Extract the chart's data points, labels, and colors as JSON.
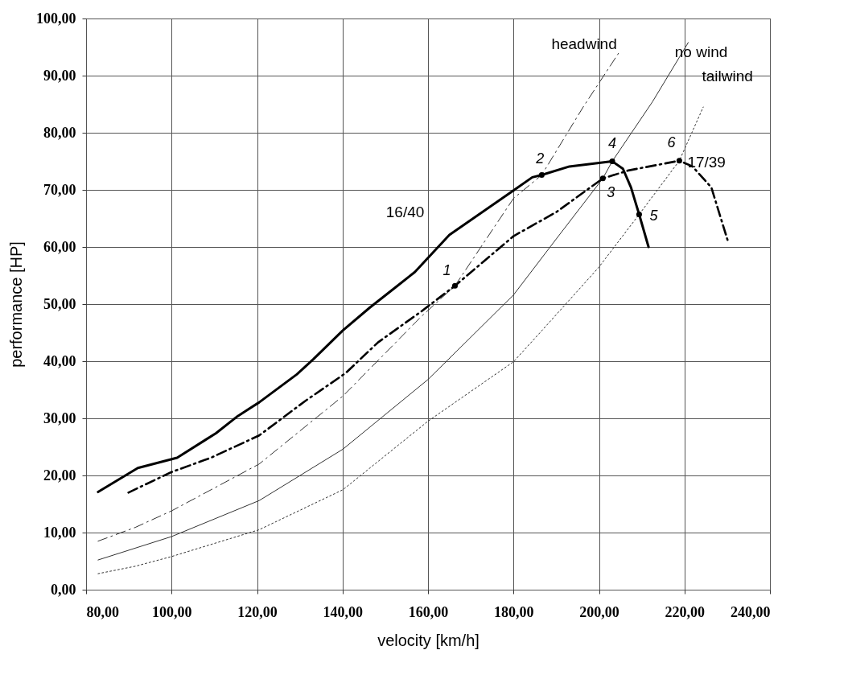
{
  "chart_data": {
    "type": "line",
    "xlabel": "velocity [km/h]",
    "ylabel": "performance [HP]",
    "xlim": [
      80,
      240
    ],
    "ylim": [
      0,
      100
    ],
    "xticks": [
      {
        "value": 80,
        "label": "80,00"
      },
      {
        "value": 100,
        "label": "100,00"
      },
      {
        "value": 120,
        "label": "120,00"
      },
      {
        "value": 140,
        "label": "140,00"
      },
      {
        "value": 160,
        "label": "160,00"
      },
      {
        "value": 180,
        "label": "180,00"
      },
      {
        "value": 200,
        "label": "200,00"
      },
      {
        "value": 220,
        "label": "220,00"
      },
      {
        "value": 240,
        "label": "240,00"
      }
    ],
    "yticks": [
      {
        "value": 0,
        "label": "0,00"
      },
      {
        "value": 10,
        "label": "10,00"
      },
      {
        "value": 20,
        "label": "20,00"
      },
      {
        "value": 30,
        "label": "30,00"
      },
      {
        "value": 40,
        "label": "40,00"
      },
      {
        "value": 50,
        "label": "50,00"
      },
      {
        "value": 60,
        "label": "60,00"
      },
      {
        "value": 70,
        "label": "70,00"
      },
      {
        "value": 80,
        "label": "80,00"
      },
      {
        "value": 90,
        "label": "90,00"
      },
      {
        "value": 100,
        "label": "100,00"
      }
    ],
    "grid": true,
    "series": [
      {
        "name": "16/40",
        "color": "#000000",
        "line_style": "solid",
        "x": [
          82.8,
          92.1,
          101.3,
          110.4,
          115.5,
          120.5,
          129.3,
          133.1,
          140.1,
          146.4,
          152.5,
          156.9,
          165,
          180,
          184.4,
          186.6,
          193.1,
          203.1,
          205.6,
          207.5,
          209.4,
          211.6
        ],
        "values": [
          17.1,
          21.3,
          23.1,
          27.4,
          30.4,
          32.8,
          37.7,
          40.3,
          45.4,
          49.4,
          53.0,
          55.6,
          62.1,
          69.9,
          72.2,
          72.6,
          74.1,
          75.0,
          73.7,
          70.4,
          65.7,
          60.0
        ]
      },
      {
        "name": "17/39",
        "color": "#000000",
        "line_style": "dashed",
        "x": [
          89.9,
          100,
          109.2,
          120.5,
          131.2,
          140.7,
          148.3,
          158.4,
          166.3,
          180,
          190,
          200.9,
          206.9,
          218.8,
          221.9,
          226.3,
          230.3
        ],
        "values": [
          17.0,
          20.6,
          23.1,
          27.0,
          33.0,
          37.9,
          43.3,
          48.7,
          53.2,
          61.9,
          66.1,
          72.0,
          73.4,
          75.1,
          74.1,
          70.4,
          60.7
        ]
      },
      {
        "name": "headwind",
        "color": "#333333",
        "line_style": "dashed",
        "x": [
          82.8,
          91.5,
          100,
          120.5,
          140.1,
          158.4,
          166.3,
          180,
          186.6,
          196.3,
          205
        ],
        "values": [
          8.5,
          10.9,
          13.8,
          22.0,
          33.9,
          47.8,
          53.2,
          68.5,
          72.6,
          84.5,
          94.4
        ]
      },
      {
        "name": "no wind",
        "color": "#333333",
        "line_style": "solid",
        "x": [
          82.8,
          100,
          120.5,
          140.1,
          160,
          180,
          190,
          200.9,
          203.1,
          212.5,
          220.9
        ],
        "values": [
          5.2,
          9.3,
          15.6,
          24.6,
          36.8,
          51.6,
          61.4,
          72.0,
          75.0,
          85.4,
          95.8
        ]
      },
      {
        "name": "tailwind",
        "color": "#333333",
        "line_style": "dotted",
        "x": [
          82.8,
          91.5,
          100,
          120.5,
          140.1,
          160,
          180,
          185.6,
          199.8,
          209.4,
          218.8,
          224.4
        ],
        "values": [
          2.8,
          4.1,
          5.8,
          10.5,
          17.5,
          29.5,
          39.9,
          44.5,
          56.3,
          65.7,
          75.1,
          84.5
        ]
      },
      {
        "type": "scatter",
        "marker": "circle",
        "color": "#000000",
        "x": [
          166.3,
          186.6,
          200.9,
          203.1,
          209.4,
          218.8
        ],
        "values": [
          53.2,
          72.6,
          72.0,
          75.0,
          65.7,
          75.1
        ]
      }
    ],
    "annotations": [
      {
        "text": "1",
        "x": 166.3,
        "y": 53.2
      },
      {
        "text": "2",
        "x": 186.6,
        "y": 72.6
      },
      {
        "text": "3",
        "x": 200.9,
        "y": 72.0
      },
      {
        "text": "4",
        "x": 203.1,
        "y": 75.0
      },
      {
        "text": "5",
        "x": 209.4,
        "y": 65.7
      },
      {
        "text": "6",
        "x": 218.8,
        "y": 75.1
      }
    ]
  }
}
